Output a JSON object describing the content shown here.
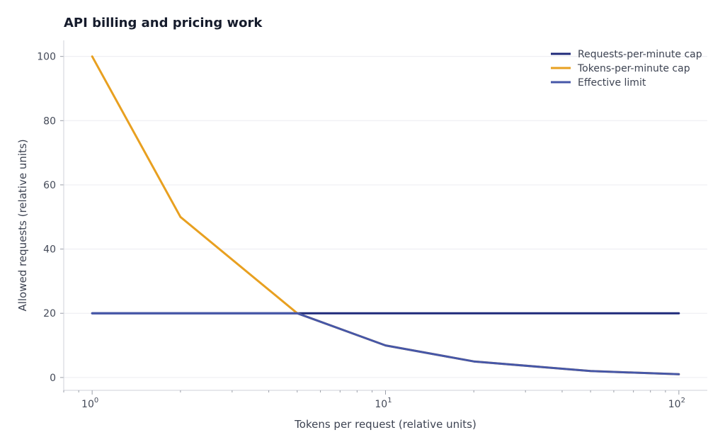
{
  "chart_data": {
    "type": "line",
    "title": "API billing and pricing work",
    "xlabel": "Tokens per request (relative units)",
    "ylabel": "Allowed requests (relative units)",
    "x_scale": "log",
    "x": [
      1,
      2,
      5,
      10,
      20,
      50,
      100
    ],
    "xlim": [
      0.8,
      125
    ],
    "ylim": [
      -4,
      105
    ],
    "yticks": [
      0,
      20,
      40,
      60,
      80,
      100
    ],
    "xticks": [
      {
        "base": "10",
        "exp": "0",
        "value": 1
      },
      {
        "base": "10",
        "exp": "1",
        "value": 10
      },
      {
        "base": "10",
        "exp": "2",
        "value": 100
      }
    ],
    "grid": true,
    "legend_position": "top-right",
    "series": [
      {
        "name": "Requests-per-minute cap",
        "color": "#1f2a7a",
        "values": [
          20,
          20,
          20,
          20,
          20,
          20,
          20
        ]
      },
      {
        "name": "Tokens-per-minute cap",
        "color": "#e8a020",
        "values": [
          100,
          50,
          20,
          10,
          5,
          2,
          1
        ]
      },
      {
        "name": "Effective limit",
        "color": "#4657a8",
        "values": [
          20,
          20,
          20,
          10,
          5,
          2,
          1
        ]
      }
    ]
  }
}
